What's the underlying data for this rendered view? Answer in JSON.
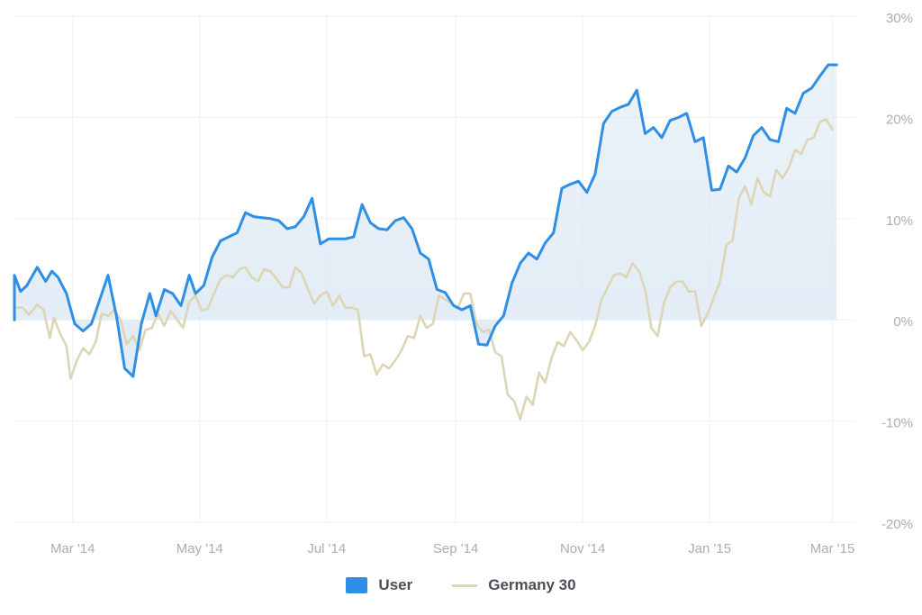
{
  "chart_data": {
    "type": "line",
    "x_ticks": [
      "Mar '14",
      "May '14",
      "Jul '14",
      "Sep '14",
      "Nov '14",
      "Jan '15",
      "Mar '15"
    ],
    "y_ticks": [
      30,
      20,
      10,
      0,
      -10,
      -20
    ],
    "y_tick_labels": [
      "30%",
      "20%",
      "10%",
      "0%",
      "-10%",
      "-20%"
    ],
    "ylim": [
      -20,
      30
    ],
    "xlim": [
      "2014-02-01",
      "2015-03-12"
    ],
    "grid": true,
    "legend_position": "bottom-center",
    "series": [
      {
        "name": "User",
        "color": "#2f8fe6",
        "area_fill": true,
        "points": [
          [
            "2014-02-01",
            0
          ],
          [
            "2014-02-01",
            4.4
          ],
          [
            "2014-02-04",
            2.8
          ],
          [
            "2014-02-07",
            3.4
          ],
          [
            "2014-02-12",
            5.2
          ],
          [
            "2014-02-16",
            3.8
          ],
          [
            "2014-02-19",
            4.8
          ],
          [
            "2014-02-22",
            4.2
          ],
          [
            "2014-02-26",
            2.6
          ],
          [
            "2014-03-02",
            -0.4
          ],
          [
            "2014-03-06",
            -1.1
          ],
          [
            "2014-03-10",
            -0.4
          ],
          [
            "2014-03-14",
            2.0
          ],
          [
            "2014-03-18",
            4.4
          ],
          [
            "2014-03-22",
            0.4
          ],
          [
            "2014-03-26",
            -4.8
          ],
          [
            "2014-03-30",
            -5.6
          ],
          [
            "2014-04-03",
            -0.4
          ],
          [
            "2014-04-07",
            2.6
          ],
          [
            "2014-04-10",
            0.4
          ],
          [
            "2014-04-14",
            3.0
          ],
          [
            "2014-04-18",
            2.6
          ],
          [
            "2014-04-22",
            1.4
          ],
          [
            "2014-04-26",
            4.4
          ],
          [
            "2014-04-29",
            2.6
          ],
          [
            "2014-05-03",
            3.4
          ],
          [
            "2014-05-07",
            6.2
          ],
          [
            "2014-05-11",
            7.8
          ],
          [
            "2014-05-15",
            8.2
          ],
          [
            "2014-05-19",
            8.6
          ],
          [
            "2014-05-23",
            10.6
          ],
          [
            "2014-05-27",
            10.2
          ],
          [
            "2014-05-31",
            10.1
          ],
          [
            "2014-06-04",
            10.0
          ],
          [
            "2014-06-08",
            9.8
          ],
          [
            "2014-06-12",
            9.0
          ],
          [
            "2014-06-16",
            9.2
          ],
          [
            "2014-06-20",
            10.2
          ],
          [
            "2014-06-24",
            12.0
          ],
          [
            "2014-06-28",
            7.5
          ],
          [
            "2014-07-02",
            8.0
          ],
          [
            "2014-07-06",
            8.0
          ],
          [
            "2014-07-10",
            8.0
          ],
          [
            "2014-07-14",
            8.2
          ],
          [
            "2014-07-18",
            11.4
          ],
          [
            "2014-07-22",
            9.6
          ],
          [
            "2014-07-26",
            9.0
          ],
          [
            "2014-07-30",
            8.9
          ],
          [
            "2014-08-03",
            9.8
          ],
          [
            "2014-08-07",
            10.1
          ],
          [
            "2014-08-11",
            9.0
          ],
          [
            "2014-08-15",
            6.6
          ],
          [
            "2014-08-19",
            6.0
          ],
          [
            "2014-08-23",
            3.0
          ],
          [
            "2014-08-27",
            2.7
          ],
          [
            "2014-08-31",
            1.4
          ],
          [
            "2014-09-04",
            1.0
          ],
          [
            "2014-09-08",
            1.4
          ],
          [
            "2014-09-12",
            -2.4
          ],
          [
            "2014-09-16",
            -2.5
          ],
          [
            "2014-09-20",
            -0.6
          ],
          [
            "2014-09-24",
            0.4
          ],
          [
            "2014-09-28",
            3.6
          ],
          [
            "2014-10-02",
            5.6
          ],
          [
            "2014-10-06",
            6.6
          ],
          [
            "2014-10-10",
            6.0
          ],
          [
            "2014-10-14",
            7.6
          ],
          [
            "2014-10-18",
            8.6
          ],
          [
            "2014-10-22",
            13.0
          ],
          [
            "2014-10-26",
            13.4
          ],
          [
            "2014-10-30",
            13.7
          ],
          [
            "2014-11-03",
            12.6
          ],
          [
            "2014-11-07",
            14.4
          ],
          [
            "2014-11-11",
            19.4
          ],
          [
            "2014-11-15",
            20.6
          ],
          [
            "2014-11-19",
            21.0
          ],
          [
            "2014-11-23",
            21.3
          ],
          [
            "2014-11-27",
            22.7
          ],
          [
            "2014-12-01",
            18.4
          ],
          [
            "2014-12-05",
            19.0
          ],
          [
            "2014-12-09",
            18.0
          ],
          [
            "2014-12-13",
            19.7
          ],
          [
            "2014-12-17",
            20.0
          ],
          [
            "2014-12-21",
            20.4
          ],
          [
            "2014-12-25",
            17.6
          ],
          [
            "2014-12-29",
            18.0
          ],
          [
            "2015-01-02",
            12.8
          ],
          [
            "2015-01-06",
            12.9
          ],
          [
            "2015-01-10",
            15.2
          ],
          [
            "2015-01-14",
            14.6
          ],
          [
            "2015-01-18",
            16.0
          ],
          [
            "2015-01-22",
            18.2
          ],
          [
            "2015-01-26",
            19.0
          ],
          [
            "2015-01-30",
            17.8
          ],
          [
            "2015-02-03",
            17.6
          ],
          [
            "2015-02-07",
            20.9
          ],
          [
            "2015-02-11",
            20.4
          ],
          [
            "2015-02-15",
            22.4
          ],
          [
            "2015-02-19",
            22.9
          ],
          [
            "2015-02-23",
            24.1
          ],
          [
            "2015-02-27",
            25.2
          ],
          [
            "2015-03-03",
            25.2
          ]
        ]
      },
      {
        "name": "Germany 30",
        "color": "#ddd6b6",
        "area_fill": false,
        "points": [
          [
            "2014-02-01",
            1.2
          ],
          [
            "2014-02-05",
            1.2
          ],
          [
            "2014-02-08",
            0.5
          ],
          [
            "2014-02-12",
            1.5
          ],
          [
            "2014-02-15",
            1.0
          ],
          [
            "2014-02-18",
            -1.8
          ],
          [
            "2014-02-20",
            0.2
          ],
          [
            "2014-02-23",
            -1.4
          ],
          [
            "2014-02-26",
            -2.6
          ],
          [
            "2014-02-28",
            -5.8
          ],
          [
            "2014-03-03",
            -4.0
          ],
          [
            "2014-03-06",
            -2.8
          ],
          [
            "2014-03-09",
            -3.4
          ],
          [
            "2014-03-12",
            -2.2
          ],
          [
            "2014-03-15",
            0.6
          ],
          [
            "2014-03-18",
            0.4
          ],
          [
            "2014-03-21",
            1.0
          ],
          [
            "2014-03-24",
            0.0
          ],
          [
            "2014-03-27",
            -2.4
          ],
          [
            "2014-03-30",
            -1.6
          ],
          [
            "2014-04-02",
            -3.0
          ],
          [
            "2014-04-05",
            -1.0
          ],
          [
            "2014-04-08",
            -0.8
          ],
          [
            "2014-04-11",
            0.6
          ],
          [
            "2014-04-14",
            -0.6
          ],
          [
            "2014-04-17",
            0.9
          ],
          [
            "2014-04-20",
            0.1
          ],
          [
            "2014-04-23",
            -0.8
          ],
          [
            "2014-04-26",
            1.8
          ],
          [
            "2014-04-29",
            2.4
          ],
          [
            "2014-05-02",
            0.9
          ],
          [
            "2014-05-05",
            1.1
          ],
          [
            "2014-05-08",
            2.6
          ],
          [
            "2014-05-11",
            4.0
          ],
          [
            "2014-05-14",
            4.4
          ],
          [
            "2014-05-17",
            4.2
          ],
          [
            "2014-05-20",
            5.0
          ],
          [
            "2014-05-23",
            5.2
          ],
          [
            "2014-05-26",
            4.2
          ],
          [
            "2014-05-29",
            3.8
          ],
          [
            "2014-06-01",
            5.0
          ],
          [
            "2014-06-04",
            4.8
          ],
          [
            "2014-06-07",
            4.0
          ],
          [
            "2014-06-10",
            3.2
          ],
          [
            "2014-06-13",
            3.2
          ],
          [
            "2014-06-16",
            5.2
          ],
          [
            "2014-06-19",
            4.6
          ],
          [
            "2014-06-22",
            3.0
          ],
          [
            "2014-06-25",
            1.6
          ],
          [
            "2014-06-28",
            2.4
          ],
          [
            "2014-07-01",
            2.8
          ],
          [
            "2014-07-04",
            1.4
          ],
          [
            "2014-07-07",
            2.4
          ],
          [
            "2014-07-10",
            1.2
          ],
          [
            "2014-07-13",
            1.2
          ],
          [
            "2014-07-16",
            1.0
          ],
          [
            "2014-07-19",
            -3.6
          ],
          [
            "2014-07-22",
            -3.4
          ],
          [
            "2014-07-25",
            -5.4
          ],
          [
            "2014-07-28",
            -4.4
          ],
          [
            "2014-07-31",
            -4.8
          ],
          [
            "2014-08-03",
            -4.0
          ],
          [
            "2014-08-06",
            -3.0
          ],
          [
            "2014-08-09",
            -1.6
          ],
          [
            "2014-08-12",
            -1.8
          ],
          [
            "2014-08-15",
            0.4
          ],
          [
            "2014-08-18",
            -0.8
          ],
          [
            "2014-08-21",
            -0.4
          ],
          [
            "2014-08-24",
            2.4
          ],
          [
            "2014-08-27",
            2.0
          ],
          [
            "2014-08-30",
            1.6
          ],
          [
            "2014-09-02",
            1.2
          ],
          [
            "2014-09-05",
            2.6
          ],
          [
            "2014-09-08",
            2.6
          ],
          [
            "2014-09-11",
            -0.4
          ],
          [
            "2014-09-14",
            -1.2
          ],
          [
            "2014-09-17",
            -1.0
          ],
          [
            "2014-09-20",
            -3.2
          ],
          [
            "2014-09-23",
            -3.6
          ],
          [
            "2014-09-26",
            -7.4
          ],
          [
            "2014-09-29",
            -8.0
          ],
          [
            "2014-10-02",
            -9.8
          ],
          [
            "2014-10-05",
            -7.6
          ],
          [
            "2014-10-08",
            -8.4
          ],
          [
            "2014-10-11",
            -5.2
          ],
          [
            "2014-10-14",
            -6.2
          ],
          [
            "2014-10-17",
            -3.8
          ],
          [
            "2014-10-20",
            -2.2
          ],
          [
            "2014-10-23",
            -2.6
          ],
          [
            "2014-10-26",
            -1.2
          ],
          [
            "2014-10-29",
            -2.0
          ],
          [
            "2014-11-01",
            -3.0
          ],
          [
            "2014-11-04",
            -2.2
          ],
          [
            "2014-11-07",
            -0.6
          ],
          [
            "2014-11-10",
            2.0
          ],
          [
            "2014-11-13",
            3.2
          ],
          [
            "2014-11-16",
            4.4
          ],
          [
            "2014-11-19",
            4.6
          ],
          [
            "2014-11-22",
            4.2
          ],
          [
            "2014-11-25",
            5.6
          ],
          [
            "2014-11-28",
            4.8
          ],
          [
            "2014-12-01",
            3.0
          ],
          [
            "2014-12-04",
            -0.8
          ],
          [
            "2014-12-07",
            -1.6
          ],
          [
            "2014-12-10",
            1.6
          ],
          [
            "2014-12-13",
            3.2
          ],
          [
            "2014-12-16",
            3.8
          ],
          [
            "2014-12-19",
            3.8
          ],
          [
            "2014-12-22",
            2.8
          ],
          [
            "2014-12-25",
            2.8
          ],
          [
            "2014-12-28",
            -0.6
          ],
          [
            "2014-12-31",
            0.6
          ],
          [
            "2015-01-03",
            2.2
          ],
          [
            "2015-01-06",
            3.8
          ],
          [
            "2015-01-09",
            7.4
          ],
          [
            "2015-01-12",
            7.8
          ],
          [
            "2015-01-15",
            12.0
          ],
          [
            "2015-01-18",
            13.2
          ],
          [
            "2015-01-21",
            11.4
          ],
          [
            "2015-01-24",
            14.0
          ],
          [
            "2015-01-27",
            12.6
          ],
          [
            "2015-01-30",
            12.2
          ],
          [
            "2015-02-02",
            14.8
          ],
          [
            "2015-02-05",
            14.0
          ],
          [
            "2015-02-08",
            15.0
          ],
          [
            "2015-02-11",
            16.8
          ],
          [
            "2015-02-14",
            16.4
          ],
          [
            "2015-02-17",
            17.8
          ],
          [
            "2015-02-20",
            18.0
          ],
          [
            "2015-02-23",
            19.6
          ],
          [
            "2015-02-26",
            19.8
          ],
          [
            "2015-03-01",
            18.8
          ]
        ]
      }
    ]
  },
  "legend": [
    {
      "label": "User",
      "color": "#2f8fe6",
      "shape": "box"
    },
    {
      "label": "Germany 30",
      "color": "#ddd6b6",
      "shape": "line"
    }
  ]
}
